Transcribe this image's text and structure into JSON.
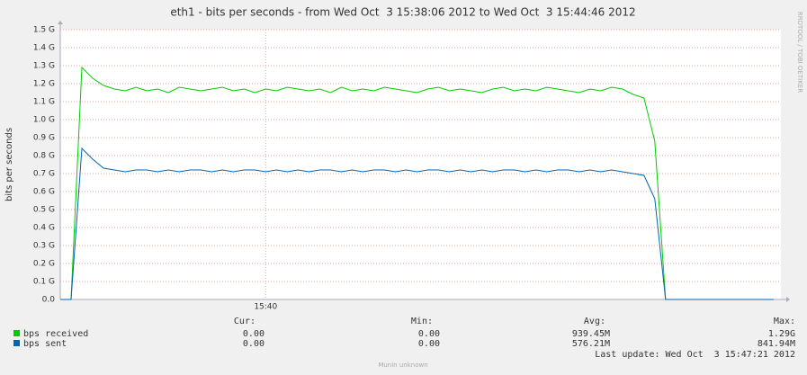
{
  "chart_data": {
    "type": "line",
    "title": "eth1 - bits per seconds - from Wed Oct  3 15:38:06 2012 to Wed Oct  3 15:44:46 2012",
    "y_label": "bits per seconds",
    "watermark": "RRDTOOL / TOBI OETIKER",
    "categories": [
      null,
      null,
      null,
      null,
      null,
      null,
      null,
      null,
      null,
      null,
      null,
      null,
      null,
      null,
      null,
      null,
      null,
      null,
      null,
      "15:40",
      null,
      null,
      null,
      null,
      null,
      null,
      null,
      null,
      null,
      null,
      null,
      null,
      null,
      null,
      null,
      null,
      null,
      null,
      null,
      null,
      null,
      null,
      null,
      null,
      null,
      null,
      null,
      null,
      null,
      null,
      null,
      null,
      null,
      null,
      null,
      null,
      null,
      null,
      null,
      null,
      null,
      null,
      null,
      null,
      null,
      null,
      null
    ],
    "series": [
      {
        "name": "bps received",
        "color": "#00cc00",
        "values": [
          0,
          0,
          1.29,
          1.23,
          1.19,
          1.17,
          1.16,
          1.18,
          1.16,
          1.17,
          1.15,
          1.18,
          1.17,
          1.16,
          1.17,
          1.18,
          1.16,
          1.17,
          1.15,
          1.17,
          1.16,
          1.18,
          1.17,
          1.16,
          1.17,
          1.15,
          1.18,
          1.16,
          1.17,
          1.16,
          1.18,
          1.17,
          1.16,
          1.15,
          1.17,
          1.18,
          1.16,
          1.17,
          1.16,
          1.15,
          1.17,
          1.18,
          1.16,
          1.17,
          1.16,
          1.18,
          1.17,
          1.16,
          1.15,
          1.17,
          1.16,
          1.18,
          1.17,
          1.14,
          1.12,
          0.88,
          0,
          0,
          0,
          0,
          0,
          0,
          0,
          0,
          0,
          0,
          0
        ]
      },
      {
        "name": "bps sent",
        "color": "#0066b3",
        "values": [
          0,
          0,
          0.84,
          0.78,
          0.73,
          0.72,
          0.71,
          0.72,
          0.72,
          0.71,
          0.72,
          0.71,
          0.72,
          0.72,
          0.71,
          0.72,
          0.71,
          0.72,
          0.72,
          0.71,
          0.72,
          0.71,
          0.72,
          0.71,
          0.72,
          0.72,
          0.71,
          0.72,
          0.71,
          0.72,
          0.72,
          0.71,
          0.72,
          0.71,
          0.72,
          0.72,
          0.71,
          0.72,
          0.71,
          0.72,
          0.71,
          0.72,
          0.72,
          0.71,
          0.72,
          0.71,
          0.72,
          0.72,
          0.71,
          0.72,
          0.71,
          0.72,
          0.71,
          0.7,
          0.69,
          0.56,
          0,
          0,
          0,
          0,
          0,
          0,
          0,
          0,
          0,
          0,
          0
        ]
      }
    ],
    "ylim": [
      0,
      1.5
    ],
    "yticks": [
      {
        "value": 0,
        "label": "0.0"
      },
      {
        "value": 0.1,
        "label": "0.1 G"
      },
      {
        "value": 0.2,
        "label": "0.2 G"
      },
      {
        "value": 0.3,
        "label": "0.3 G"
      },
      {
        "value": 0.4,
        "label": "0.4 G"
      },
      {
        "value": 0.5,
        "label": "0.5 G"
      },
      {
        "value": 0.6,
        "label": "0.6 G"
      },
      {
        "value": 0.7,
        "label": "0.7 G"
      },
      {
        "value": 0.8,
        "label": "0.8 G"
      },
      {
        "value": 0.9,
        "label": "0.9 G"
      },
      {
        "value": 1.0,
        "label": "1.0 G"
      },
      {
        "value": 1.1,
        "label": "1.1 G"
      },
      {
        "value": 1.2,
        "label": "1.2 G"
      },
      {
        "value": 1.3,
        "label": "1.3 G"
      },
      {
        "value": 1.4,
        "label": "1.4 G"
      },
      {
        "value": 1.5,
        "label": "1.5 G"
      }
    ],
    "grid": true,
    "legend_table": {
      "headers": [
        "Cur:",
        "Min:",
        "Avg:",
        "Max:"
      ],
      "rows": [
        [
          "0.00",
          "0.00",
          "939.45M",
          "1.29G"
        ],
        [
          "0.00",
          "0.00",
          "576.21M",
          "841.94M"
        ]
      ]
    },
    "last_update": "Last update: Wed Oct  3 15:47:21 2012",
    "footer": "Munin unknown"
  }
}
